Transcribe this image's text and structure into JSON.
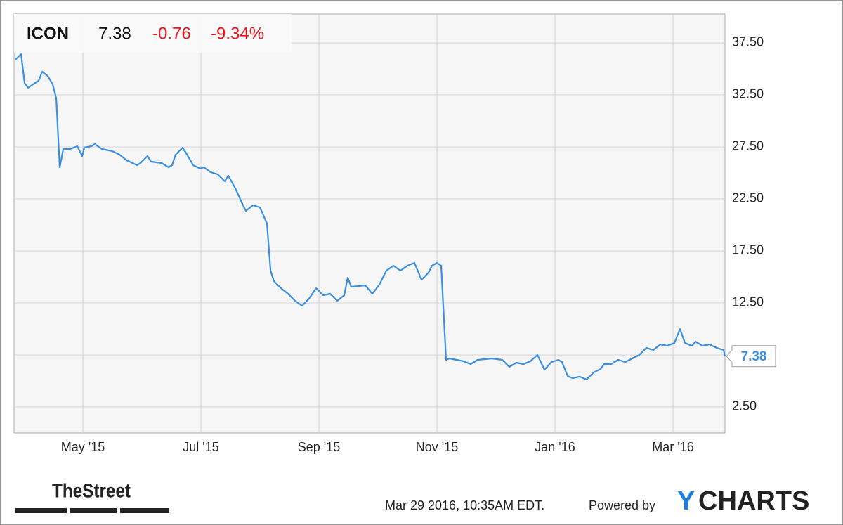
{
  "chart_data": {
    "type": "line",
    "ticker": "ICON",
    "price": 7.38,
    "change": -0.76,
    "change_pct": "-9.34%",
    "x": [
      2.857,
      2.952,
      3.012,
      3.071,
      3.19,
      3.25,
      3.31,
      3.404,
      3.488,
      3.548,
      3.607,
      3.667,
      3.786,
      3.905,
      3.988,
      4.024,
      4.143,
      4.202,
      4.321,
      4.5,
      4.619,
      4.738,
      4.917,
      4.976,
      5.095,
      5.155,
      5.333,
      5.452,
      5.512,
      5.571,
      5.69,
      5.75,
      5.869,
      5.988,
      6.048,
      6.167,
      6.286,
      6.405,
      6.464,
      6.583,
      6.702,
      6.762,
      6.881,
      7.0,
      7.119,
      7.179,
      7.238,
      7.357,
      7.476,
      7.595,
      7.714,
      7.833,
      7.952,
      8.071,
      8.19,
      8.31,
      8.429,
      8.488,
      8.548,
      8.786,
      8.905,
      9.024,
      9.143,
      9.262,
      9.381,
      9.5,
      9.619,
      9.738,
      9.857,
      9.917,
      10.0,
      10.071,
      10.155,
      10.214,
      10.452,
      10.571,
      10.69,
      10.929,
      11.107,
      11.226,
      11.345,
      11.464,
      11.583,
      11.702,
      11.821,
      11.94,
      12.06,
      12.119,
      12.214,
      12.298,
      12.417,
      12.536,
      12.655,
      12.774,
      12.833,
      12.952,
      13.071,
      13.19,
      13.31,
      13.429,
      13.548,
      13.667,
      13.786,
      13.905,
      14.024,
      14.119,
      14.202,
      14.321,
      14.381,
      14.5,
      14.619,
      14.738,
      14.857,
      14.881
    ],
    "series": [
      {
        "color": "#3a8fe0",
        "values": [
          35.88,
          36.42,
          33.65,
          33.18,
          33.65,
          33.85,
          34.73,
          34.32,
          33.51,
          32.16,
          25.54,
          27.3,
          27.3,
          27.57,
          26.62,
          27.43,
          27.57,
          27.77,
          27.3,
          27.09,
          26.76,
          26.22,
          25.74,
          25.95,
          26.62,
          26.08,
          25.95,
          25.54,
          25.74,
          26.76,
          27.43,
          26.89,
          25.74,
          25.41,
          25.54,
          25.07,
          24.86,
          24.19,
          24.73,
          23.51,
          22.03,
          21.35,
          21.89,
          21.69,
          20.14,
          15.61,
          14.59,
          13.92,
          13.38,
          12.7,
          12.23,
          12.91,
          13.92,
          13.24,
          13.38,
          12.7,
          13.24,
          14.93,
          14.05,
          14.19,
          13.38,
          14.26,
          15.61,
          16.08,
          15.61,
          16.08,
          16.35,
          14.73,
          15.41,
          16.08,
          16.35,
          16.08,
          7.03,
          7.16,
          6.89,
          6.62,
          7.03,
          7.16,
          7.03,
          6.35,
          6.76,
          6.62,
          6.89,
          7.5,
          6.08,
          6.82,
          7.03,
          6.82,
          5.47,
          5.27,
          5.41,
          5.14,
          5.81,
          6.15,
          6.62,
          6.62,
          7.03,
          6.82,
          7.16,
          7.5,
          8.18,
          7.97,
          8.51,
          8.38,
          8.65,
          10.0,
          8.65,
          8.38,
          8.78,
          8.38,
          8.51,
          8.18,
          7.97,
          7.38
        ]
      }
    ],
    "xlim": [
      2.833,
      14.881
    ],
    "ylim": [
      0,
      40.27
    ],
    "xticks": [
      {
        "value": 4,
        "label": "May '15"
      },
      {
        "value": 6,
        "label": "Jul '15"
      },
      {
        "value": 8,
        "label": "Sep '15"
      },
      {
        "value": 10,
        "label": "Nov '15"
      },
      {
        "value": 12,
        "label": "Jan '16"
      },
      {
        "value": 14,
        "label": "Mar '16"
      }
    ],
    "yticks": [
      {
        "value": 2.5,
        "label": "2.50"
      },
      {
        "value": 7.5,
        "label": "7.50"
      },
      {
        "value": 12.5,
        "label": "12.50"
      },
      {
        "value": 17.5,
        "label": "17.50"
      },
      {
        "value": 22.5,
        "label": "22.50"
      },
      {
        "value": 27.5,
        "label": "27.50"
      },
      {
        "value": 32.5,
        "label": "32.50"
      },
      {
        "value": 37.5,
        "label": "37.50"
      }
    ],
    "grid": true,
    "source_logo": "TheStreet",
    "timestamp": "Mar 29 2016, 10:35AM EDT.",
    "powered_by": "Powered by",
    "brand": [
      "Y",
      "CHARTS"
    ]
  }
}
